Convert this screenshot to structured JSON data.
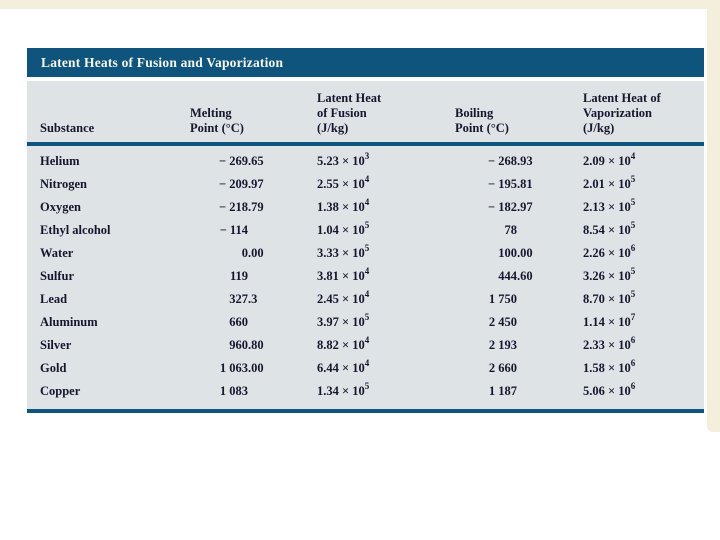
{
  "page": {
    "background": "#ffffff",
    "scan_border_color": "#f4eedd"
  },
  "table": {
    "title": "Latent Heats of Fusion and Vaporization",
    "colors": {
      "title_bar_bg": "#0e547c",
      "title_text": "#f7f4e8",
      "header_bg": "#dee3e5",
      "body_bg": "#dee3e5",
      "rule": "#0e547c",
      "text": "#16162e"
    },
    "columns": [
      {
        "id": "substance",
        "label_lines": [
          "Substance"
        ]
      },
      {
        "id": "melting-point",
        "label_lines": [
          "Melting",
          "Point (°C)"
        ]
      },
      {
        "id": "latent-heat-fusion",
        "label_lines": [
          "Latent Heat",
          "of Fusion",
          "(J/kg)"
        ]
      },
      {
        "id": "boiling-point",
        "label_lines": [
          "Boiling",
          "Point (°C)"
        ]
      },
      {
        "id": "latent-heat-vaporization",
        "label_lines": [
          "Latent Heat of",
          "Vaporization",
          "(J/kg)"
        ]
      }
    ],
    "rows": [
      {
        "substance": "Helium",
        "melting": "− 269.65",
        "fusion": {
          "mantissa": "5.23",
          "exponent": "3"
        },
        "boiling": "− 268.93",
        "vaporization": {
          "mantissa": "2.09",
          "exponent": "4"
        }
      },
      {
        "substance": "Nitrogen",
        "melting": "− 209.97",
        "fusion": {
          "mantissa": "2.55",
          "exponent": "4"
        },
        "boiling": "− 195.81",
        "vaporization": {
          "mantissa": "2.01",
          "exponent": "5"
        }
      },
      {
        "substance": "Oxygen",
        "melting": "− 218.79",
        "fusion": {
          "mantissa": "1.38",
          "exponent": "4"
        },
        "boiling": "− 182.97",
        "vaporization": {
          "mantissa": "2.13",
          "exponent": "5"
        }
      },
      {
        "substance": "Ethyl alcohol",
        "melting": "− 114",
        "fusion": {
          "mantissa": "1.04",
          "exponent": "5"
        },
        "boiling": "78",
        "vaporization": {
          "mantissa": "8.54",
          "exponent": "5"
        }
      },
      {
        "substance": "Water",
        "melting": "0.00",
        "fusion": {
          "mantissa": "3.33",
          "exponent": "5"
        },
        "boiling": "100.00",
        "vaporization": {
          "mantissa": "2.26",
          "exponent": "6"
        }
      },
      {
        "substance": "Sulfur",
        "melting": "119",
        "fusion": {
          "mantissa": "3.81",
          "exponent": "4"
        },
        "boiling": "444.60",
        "vaporization": {
          "mantissa": "3.26",
          "exponent": "5"
        }
      },
      {
        "substance": "Lead",
        "melting": "327.3",
        "fusion": {
          "mantissa": "2.45",
          "exponent": "4"
        },
        "boiling": "1 750",
        "vaporization": {
          "mantissa": "8.70",
          "exponent": "5"
        }
      },
      {
        "substance": "Aluminum",
        "melting": "660",
        "fusion": {
          "mantissa": "3.97",
          "exponent": "5"
        },
        "boiling": "2 450",
        "vaporization": {
          "mantissa": "1.14",
          "exponent": "7"
        }
      },
      {
        "substance": "Silver",
        "melting": "960.80",
        "fusion": {
          "mantissa": "8.82",
          "exponent": "4"
        },
        "boiling": "2 193",
        "vaporization": {
          "mantissa": "2.33",
          "exponent": "6"
        }
      },
      {
        "substance": "Gold",
        "melting": "1 063.00",
        "fusion": {
          "mantissa": "6.44",
          "exponent": "4"
        },
        "boiling": "2 660",
        "vaporization": {
          "mantissa": "1.58",
          "exponent": "6"
        }
      },
      {
        "substance": "Copper",
        "melting": "1 083",
        "fusion": {
          "mantissa": "1.34",
          "exponent": "5"
        },
        "boiling": "1 187",
        "vaporization": {
          "mantissa": "5.06",
          "exponent": "6"
        }
      }
    ],
    "notation": {
      "times_sign": "×",
      "base": "10"
    }
  }
}
